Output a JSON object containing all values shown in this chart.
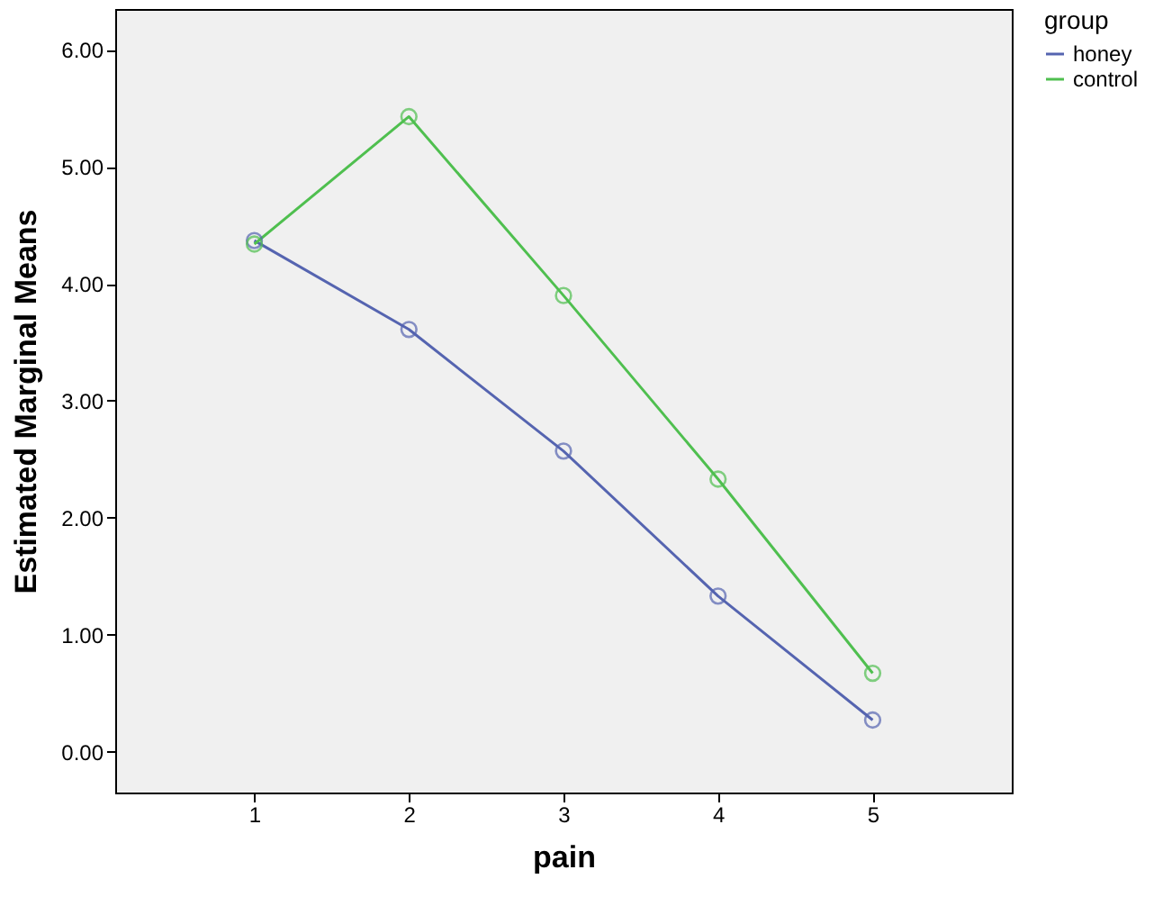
{
  "chart_data": {
    "type": "line",
    "xlabel": "pain",
    "ylabel": "Estimated Marginal Means",
    "legend_title": "group",
    "categories": [
      "1",
      "2",
      "3",
      "4",
      "5"
    ],
    "series": [
      {
        "name": "honey",
        "color": "#5564b0",
        "values": [
          4.37,
          3.61,
          2.57,
          1.33,
          0.27
        ]
      },
      {
        "name": "control",
        "color": "#4fbf4f",
        "values": [
          4.34,
          5.43,
          3.9,
          2.33,
          0.67
        ]
      }
    ],
    "ylim": [
      -0.35,
      6.35
    ],
    "yticks": [
      {
        "value": 0,
        "label": "0.00"
      },
      {
        "value": 1,
        "label": "1.00"
      },
      {
        "value": 2,
        "label": "2.00"
      },
      {
        "value": 3,
        "label": "3.00"
      },
      {
        "value": 4,
        "label": "4.00"
      },
      {
        "value": 5,
        "label": "5.00"
      },
      {
        "value": 6,
        "label": "6.00"
      }
    ],
    "grid": false,
    "legend": "top right",
    "marker": "circle",
    "line_style": "solid"
  }
}
